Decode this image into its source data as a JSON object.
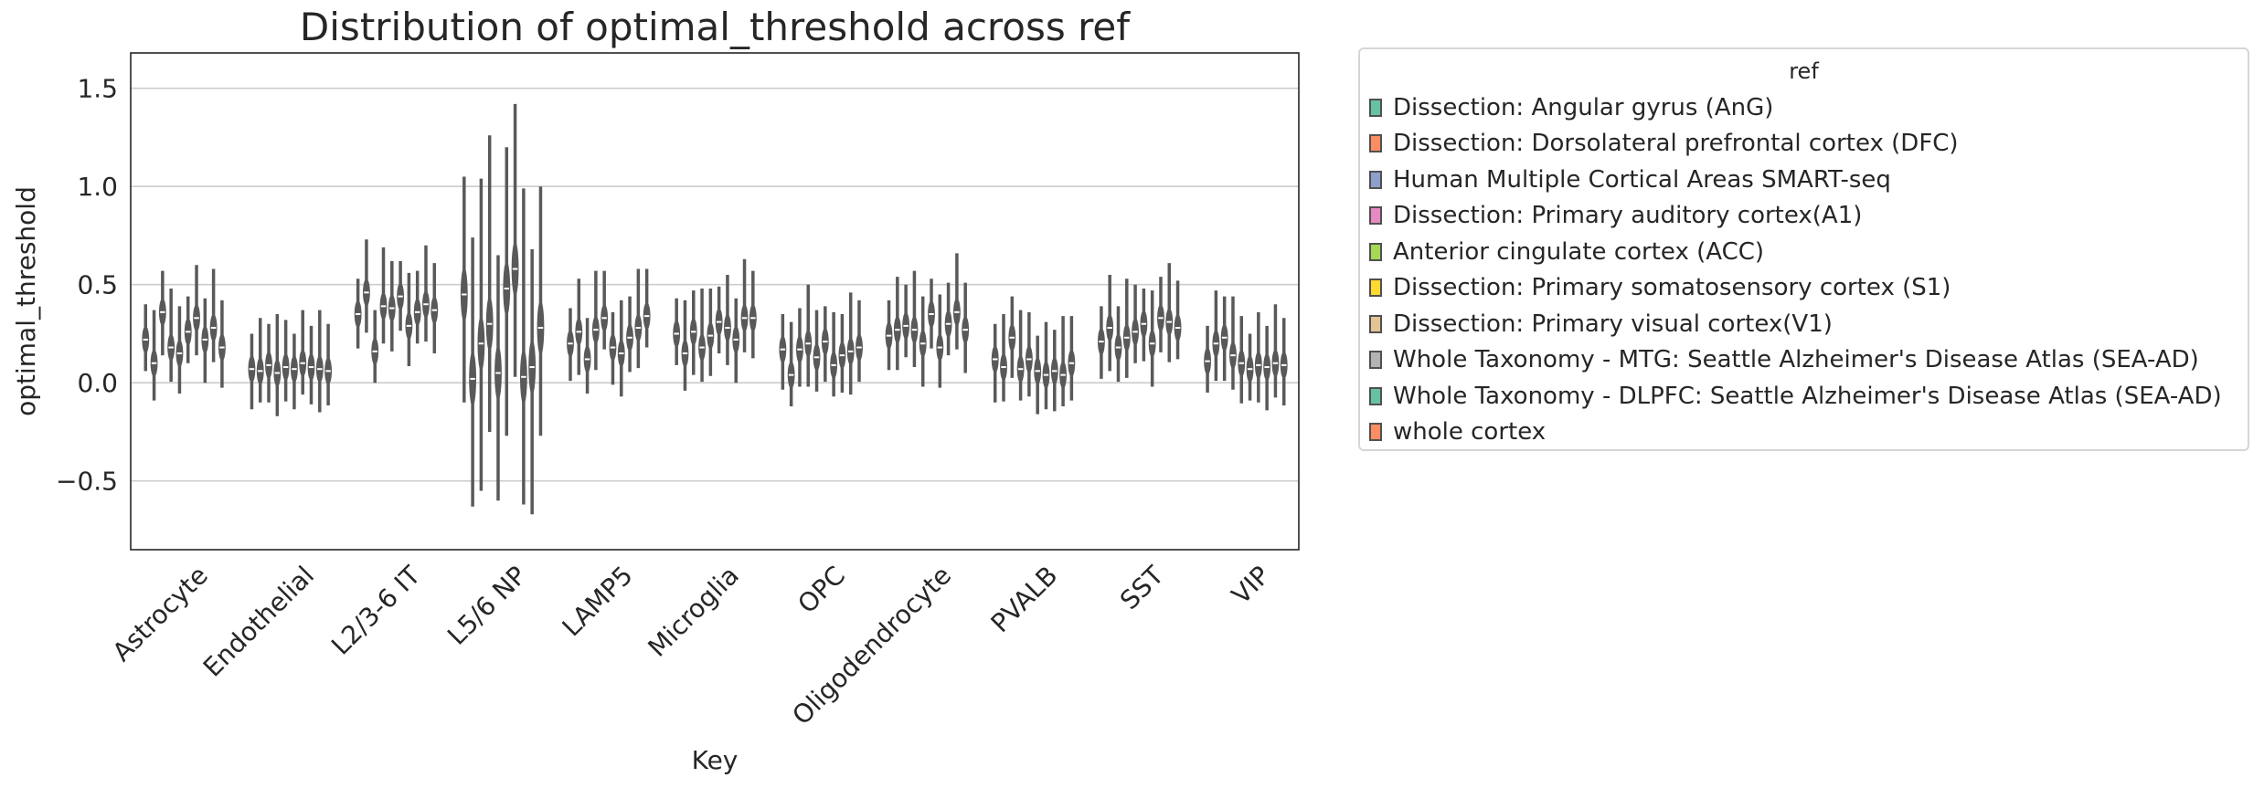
{
  "palette": [
    "#66c2a5",
    "#fc8d62",
    "#8da0cb",
    "#e78ac3",
    "#a6d854",
    "#ffd92f",
    "#e5c494",
    "#b3b3b3",
    "#66c2a5",
    "#fc8d62"
  ],
  "violin_color": "#595959",
  "chart_data": {
    "type": "violin",
    "title": "Distribution of optimal_threshold across ref",
    "xlabel": "Key",
    "ylabel": "optimal_threshold",
    "ylim": [
      -0.85,
      1.68
    ],
    "yticks": [
      1.5,
      1.0,
      0.5,
      0.0,
      -0.5
    ],
    "ytick_labels": [
      "1.5",
      "1.0",
      "0.5",
      "0.0",
      "−0.5"
    ],
    "grid": "horizontal",
    "legend_title": "ref",
    "legend_position": "outside-right",
    "categories": [
      "Astrocyte",
      "Endothelial",
      "L2/3-6 IT",
      "L5/6 NP",
      "LAMP5",
      "Microglia",
      "OPC",
      "Oligodendrocyte",
      "PVALB",
      "SST",
      "VIP"
    ],
    "series": [
      {
        "name": "Dissection: Angular gyrus (AnG)",
        "medians": [
          0.22,
          0.07,
          0.35,
          0.45,
          0.2,
          0.25,
          0.17,
          0.24,
          0.12,
          0.21,
          0.11
        ]
      },
      {
        "name": "Dissection: Dorsolateral prefrontal cortex (DFC)",
        "medians": [
          0.1,
          0.06,
          0.46,
          0.02,
          0.26,
          0.15,
          0.04,
          0.27,
          0.08,
          0.28,
          0.2
        ]
      },
      {
        "name": "Human Multiple Cortical Areas SMART-seq",
        "medians": [
          0.36,
          0.09,
          0.16,
          0.2,
          0.12,
          0.26,
          0.17,
          0.29,
          0.23,
          0.18,
          0.23
        ]
      },
      {
        "name": "Dissection: Primary auditory cortex(A1)",
        "medians": [
          0.18,
          0.05,
          0.39,
          0.3,
          0.27,
          0.18,
          0.2,
          0.27,
          0.07,
          0.23,
          0.14
        ]
      },
      {
        "name": "Anterior cingulate cortex (ACC)",
        "medians": [
          0.15,
          0.08,
          0.38,
          0.05,
          0.33,
          0.24,
          0.13,
          0.2,
          0.12,
          0.26,
          0.1
        ]
      },
      {
        "name": "Dissection: Primary somatosensory cortex (S1)",
        "medians": [
          0.26,
          0.07,
          0.44,
          0.48,
          0.18,
          0.31,
          0.21,
          0.35,
          0.06,
          0.3,
          0.07
        ]
      },
      {
        "name": "Dissection: Primary visual cortex(V1)",
        "medians": [
          0.33,
          0.1,
          0.29,
          0.58,
          0.15,
          0.28,
          0.09,
          0.18,
          0.04,
          0.2,
          0.09
        ]
      },
      {
        "name": "Whole Taxonomy - MTG: Seattle Alzheimer's Disease Atlas (SEA-AD)",
        "medians": [
          0.22,
          0.08,
          0.36,
          0.03,
          0.23,
          0.22,
          0.14,
          0.3,
          0.06,
          0.33,
          0.08
        ]
      },
      {
        "name": "Whole Taxonomy - DLPFC: Seattle Alzheimer's Disease Atlas (SEA-AD)",
        "medians": [
          0.28,
          0.07,
          0.4,
          0.08,
          0.28,
          0.33,
          0.16,
          0.36,
          0.04,
          0.31,
          0.1
        ]
      },
      {
        "name": "whole cortex",
        "medians": [
          0.18,
          0.06,
          0.37,
          0.28,
          0.34,
          0.33,
          0.18,
          0.27,
          0.1,
          0.28,
          0.09
        ]
      }
    ]
  }
}
